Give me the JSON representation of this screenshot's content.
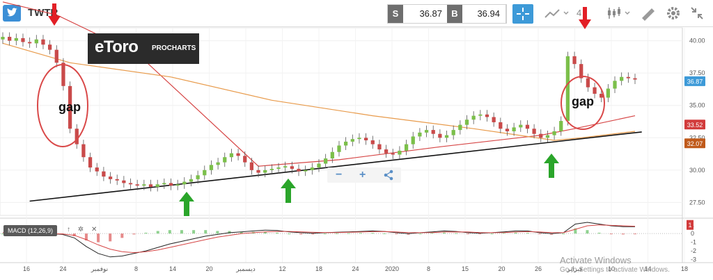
{
  "header": {
    "symbol": "TWTR",
    "sell_label": "S",
    "sell_price": "36.87",
    "buy_label": "B",
    "buy_price": "36.94",
    "timeframe_label": "4"
  },
  "overlay": {
    "brand_name": "eToro",
    "brand_sub": "PROCHARTS",
    "zoom_minus": "−",
    "zoom_plus": "+"
  },
  "indicator": {
    "label": "MACD (12,26,9)"
  },
  "watermark": {
    "line1": "Activate Windows",
    "line2": "Go to Settings to activate Windows."
  },
  "chart_data": {
    "type": "candlestick",
    "price_axis": {
      "ticks": [
        "40.00",
        "37.50",
        "35.00",
        "32.50",
        "30.00",
        "27.50"
      ],
      "range": [
        26.5,
        41.0
      ]
    },
    "x_ticks": [
      "16",
      "24",
      "نوفمبر",
      "8",
      "14",
      "20",
      "ديسمبر",
      "12",
      "18",
      "24",
      "2020",
      "8",
      "15",
      "20",
      "26",
      "فبراير",
      "10",
      "14",
      "18"
    ],
    "price_badges": [
      {
        "value": "36.87",
        "color": "#3d9ad8"
      },
      {
        "value": "33.52",
        "color": "#d23b3b"
      },
      {
        "value": "32.07",
        "color": "#c05a1b"
      }
    ],
    "macd_axis": {
      "ticks": [
        "1",
        "0",
        "-1",
        "-2",
        "-3"
      ],
      "range": [
        -3.2,
        1.3
      ]
    },
    "macd_badge": {
      "value": "1",
      "color": "#d23b3b"
    },
    "annotations": [
      {
        "text": "gap"
      },
      {
        "text": "gap"
      }
    ],
    "series": [
      {
        "id": "closes",
        "values": [
          40.3,
          40.0,
          40.2,
          39.9,
          39.8,
          40.1,
          39.7,
          39.3,
          38.3,
          36.5,
          33.2,
          32.0,
          31.0,
          30.2,
          29.9,
          29.5,
          29.3,
          29.2,
          29.0,
          28.9,
          28.8,
          28.9,
          28.7,
          28.9,
          29.0,
          28.8,
          28.9,
          29.1,
          29.3,
          29.6,
          30.0,
          30.4,
          30.6,
          31.0,
          31.3,
          31.1,
          30.6,
          30.0,
          29.8,
          30.0,
          30.1,
          30.2,
          30.3,
          30.1,
          29.9,
          30.0,
          30.2,
          30.5,
          30.9,
          31.4,
          31.9,
          32.2,
          32.4,
          32.5,
          32.3,
          32.0,
          31.6,
          31.3,
          31.2,
          31.5,
          32.0,
          32.6,
          32.9,
          33.1,
          32.8,
          32.5,
          32.7,
          33.1,
          33.5,
          33.9,
          34.2,
          34.3,
          34.1,
          33.7,
          33.2,
          33.0,
          33.3,
          33.5,
          33.2,
          32.8,
          32.5,
          32.7,
          33.0,
          33.8,
          38.8,
          38.2,
          37.1,
          36.4,
          35.9,
          35.6,
          36.3,
          36.9,
          37.2,
          37.1,
          37.0
        ]
      },
      {
        "id": "moving-average-red",
        "values": [
          [
            0,
            43.0
          ],
          [
            8,
            42.0
          ],
          [
            20,
            39.0
          ],
          [
            38,
            30.3
          ],
          [
            50,
            30.8
          ],
          [
            65,
            31.8
          ],
          [
            80,
            32.7
          ],
          [
            85,
            33.2
          ],
          [
            94,
            34.2
          ]
        ]
      },
      {
        "id": "moving-average-orange",
        "values": [
          [
            0,
            39.8
          ],
          [
            10,
            38.3
          ],
          [
            25,
            37.2
          ],
          [
            40,
            35.4
          ],
          [
            55,
            34.2
          ],
          [
            70,
            33.2
          ],
          [
            78,
            32.6
          ],
          [
            82,
            32.3
          ],
          [
            86,
            32.5
          ],
          [
            94,
            33.0
          ]
        ]
      },
      {
        "id": "trendline",
        "values": [
          [
            4,
            27.6
          ],
          [
            95,
            32.95
          ]
        ]
      }
    ],
    "macd": {
      "macd": [
        0.1,
        0.1,
        0.1,
        0.0,
        0.0,
        -0.1,
        -0.5,
        -1.5,
        -2.3,
        -2.7,
        -2.6,
        -2.3,
        -2.0,
        -1.6,
        -1.2,
        -0.9,
        -0.6,
        -0.3,
        -0.1,
        0.1,
        0.2,
        0.3,
        0.4,
        0.35,
        0.2,
        0.1,
        0.05,
        0.1,
        0.15,
        0.2,
        0.25,
        0.3,
        0.25,
        0.1,
        0.0,
        0.1,
        0.2,
        0.3,
        0.25,
        0.1,
        0.05,
        0.1,
        0.2,
        0.3,
        0.3,
        0.1,
        0.0,
        0.1,
        1.1,
        1.3,
        1.1,
        0.9,
        0.8,
        0.8
      ],
      "signal": [
        0.1,
        0.1,
        0.1,
        0.05,
        0.0,
        -0.05,
        -0.2,
        -0.7,
        -1.3,
        -1.8,
        -2.1,
        -2.2,
        -2.1,
        -1.9,
        -1.6,
        -1.3,
        -1.0,
        -0.7,
        -0.4,
        -0.2,
        0.0,
        0.1,
        0.2,
        0.25,
        0.25,
        0.2,
        0.15,
        0.12,
        0.12,
        0.15,
        0.18,
        0.22,
        0.23,
        0.18,
        0.12,
        0.1,
        0.12,
        0.18,
        0.2,
        0.18,
        0.12,
        0.1,
        0.12,
        0.18,
        0.22,
        0.18,
        0.12,
        0.1,
        0.5,
        0.9,
        1.0,
        0.95,
        0.9,
        0.85
      ],
      "histogram": [
        0.0,
        0.0,
        0.0,
        -0.05,
        0.0,
        -0.05,
        -0.3,
        -0.8,
        -1.0,
        -0.9,
        -0.5,
        -0.1,
        0.1,
        0.3,
        0.4,
        0.4,
        0.4,
        0.4,
        0.3,
        0.3,
        0.2,
        0.2,
        0.2,
        0.1,
        0.0,
        -0.1,
        -0.1,
        0.0,
        0.03,
        0.05,
        0.07,
        0.08,
        0.02,
        -0.08,
        -0.12,
        0.0,
        0.08,
        0.12,
        0.05,
        -0.08,
        -0.07,
        0.0,
        0.08,
        0.12,
        0.08,
        -0.08,
        -0.12,
        0.0,
        0.6,
        0.4,
        0.1,
        -0.05,
        -0.1,
        -0.05
      ]
    }
  }
}
